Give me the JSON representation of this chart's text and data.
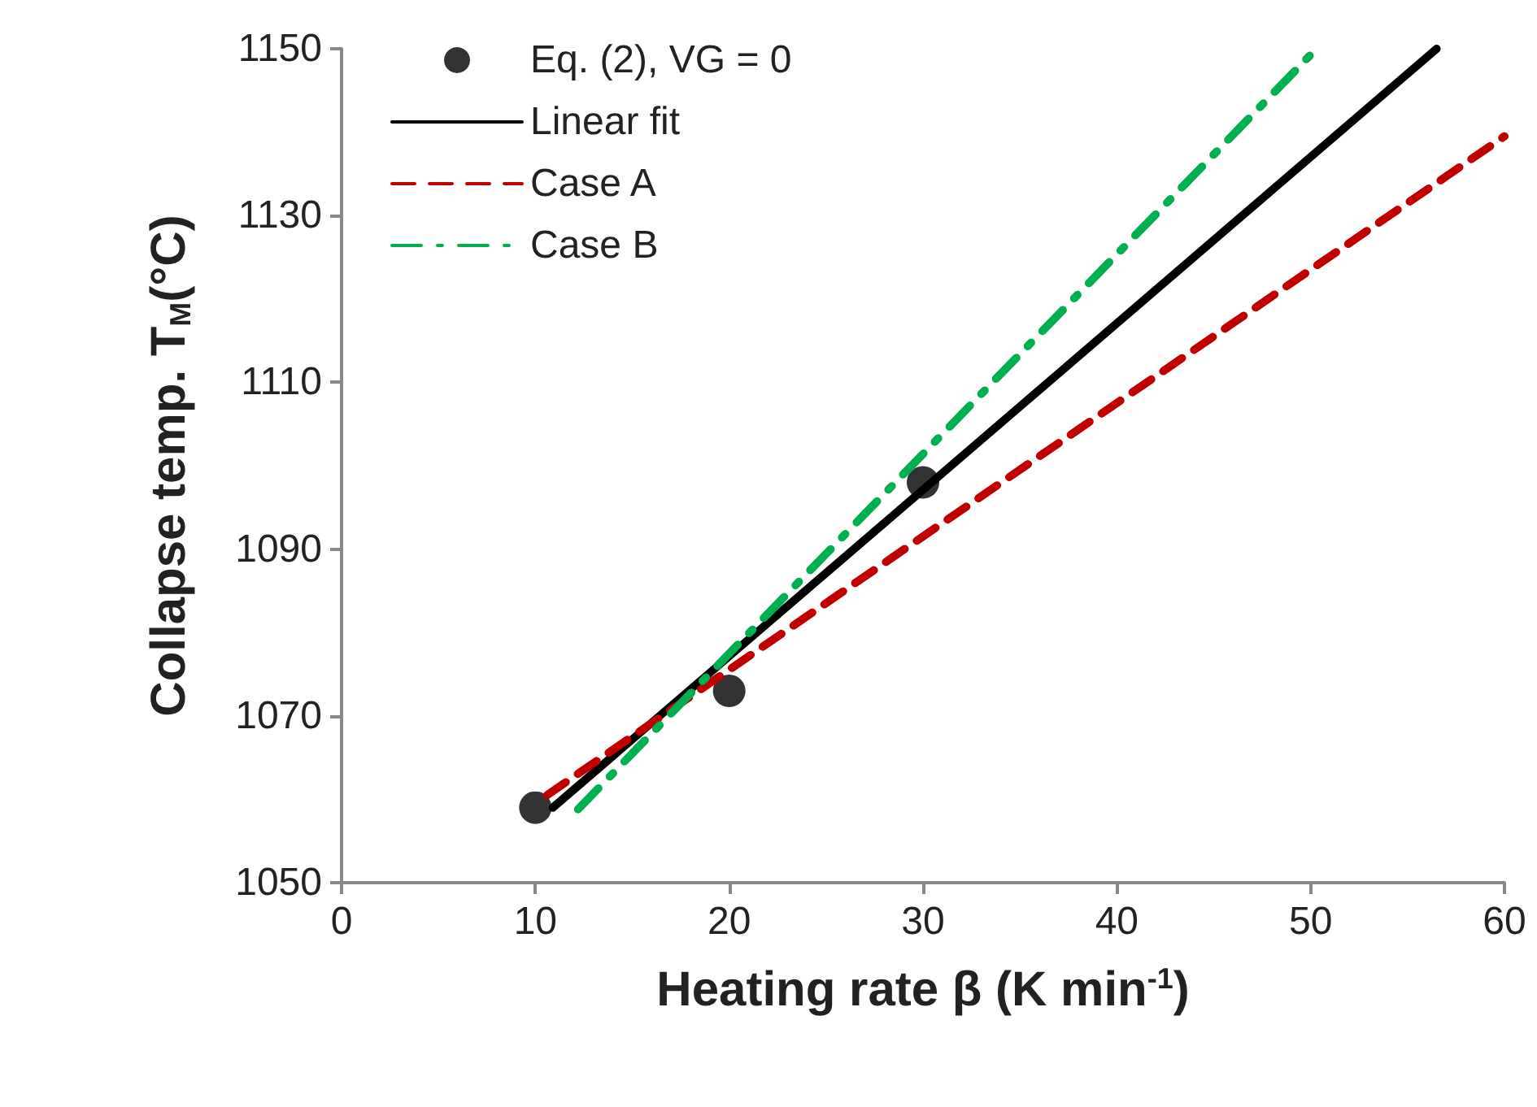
{
  "chart_data": {
    "type": "line",
    "xlabel": "Heating rate β (K min$^{-1}$)",
    "ylabel": "Collapse temp. T$_{M}$(°C)",
    "xlim": [
      0,
      60
    ],
    "xticks": [
      0,
      10,
      20,
      30,
      40,
      50,
      60
    ],
    "ylim": [
      1050,
      1150
    ],
    "yticks": [
      1050,
      1070,
      1090,
      1110,
      1130,
      1150
    ],
    "grid": false,
    "legend": "top left",
    "series": [
      {
        "name": "Eq. (2), VG = 0",
        "type": "scatter",
        "marker": "circle",
        "color": "#000000",
        "x": [
          10,
          20,
          30
        ],
        "values": [
          1059,
          1073,
          1098
        ]
      },
      {
        "name": "Linear fit",
        "line_style": "solid",
        "color": "#000000",
        "x": [
          10.9,
          56.5
        ],
        "values": [
          1059,
          1150
        ]
      },
      {
        "name": "Case A",
        "line_style": "dashed",
        "color": "#c00000",
        "x": [
          10.6,
          60
        ],
        "values": [
          1060.5,
          1139.5
        ]
      },
      {
        "name": "Case B",
        "line_style": "dashdot",
        "color": "#00b050",
        "x": [
          12.2,
          50.3
        ],
        "values": [
          1058.8,
          1150
        ]
      }
    ]
  }
}
